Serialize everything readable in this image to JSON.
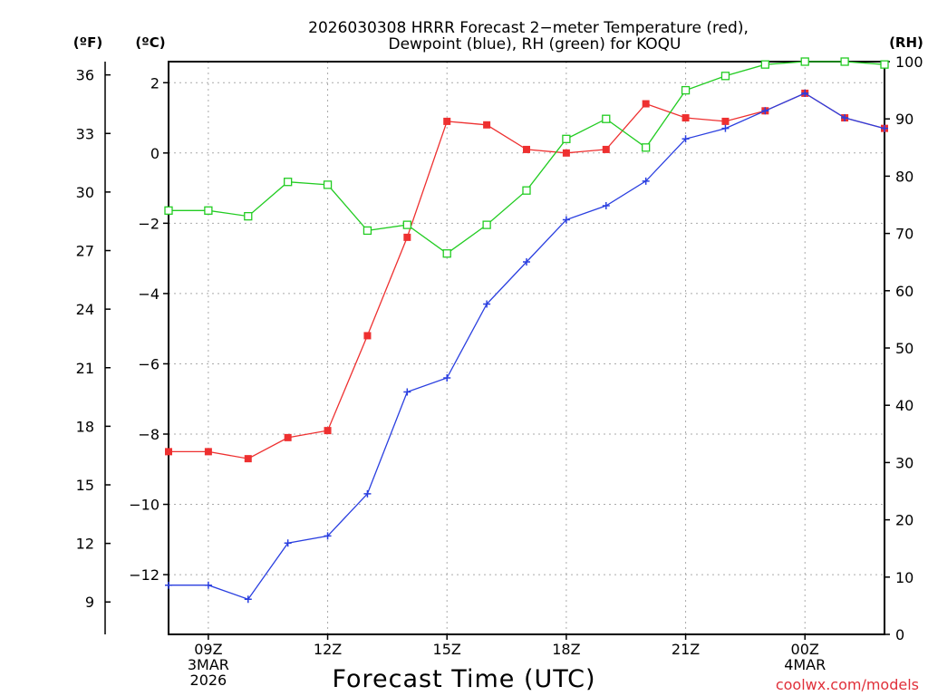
{
  "colors": {
    "temperature": "#ee3030",
    "dewpoint": "#2a3fe0",
    "rh": "#22cc22",
    "grid": "#aaaaaa",
    "credit": "#e0303a"
  },
  "chart_data": {
    "type": "line",
    "title": "2026030308 HRRR Forecast 2-meter Temperature (red), Dewpoint (blue), RH (green) for KOQU",
    "title_lines": [
      "2026030308 HRRR Forecast 2−meter Temperature (red),",
      "Dewpoint (blue), RH (green) for KOQU"
    ],
    "xlabel": "Forecast Time (UTC)",
    "credit": "coolwx.com/models",
    "x": [
      8,
      9,
      10,
      11,
      12,
      13,
      14,
      15,
      16,
      17,
      18,
      19,
      20,
      21,
      22,
      23,
      24,
      25,
      26
    ],
    "xlim": [
      8,
      26
    ],
    "x_ticks": [
      {
        "pos": 9,
        "lines": [
          "09Z",
          "3MAR",
          "2026"
        ]
      },
      {
        "pos": 12,
        "lines": [
          "12Z"
        ]
      },
      {
        "pos": 15,
        "lines": [
          "15Z"
        ]
      },
      {
        "pos": 18,
        "lines": [
          "18Z"
        ]
      },
      {
        "pos": 21,
        "lines": [
          "21Z"
        ]
      },
      {
        "pos": 24,
        "lines": [
          "00Z",
          "4MAR"
        ]
      }
    ],
    "y_celsius": {
      "label": "(ºC)",
      "ylim": [
        -13.7,
        2.6
      ],
      "ticks": [
        2,
        0,
        -2,
        -4,
        -6,
        -8,
        -10,
        -12
      ],
      "tick_labels": [
        "2",
        "0",
        "−2",
        "−4",
        "−6",
        "−8",
        "−10",
        "−12"
      ]
    },
    "y_fahrenheit": {
      "label": "(ºF)",
      "ticks": [
        36,
        33,
        30,
        27,
        24,
        21,
        18,
        15,
        12,
        9
      ],
      "tick_labels": [
        "36",
        "33",
        "30",
        "27",
        "24",
        "21",
        "18",
        "15",
        "12",
        "9"
      ]
    },
    "y_rh": {
      "label": "(RH)",
      "ylim": [
        0,
        100
      ],
      "ticks": [
        100,
        90,
        80,
        70,
        60,
        50,
        40,
        30,
        20,
        10,
        0
      ],
      "tick_labels": [
        "100",
        "90",
        "80",
        "70",
        "60",
        "50",
        "40",
        "30",
        "20",
        "10",
        "0"
      ]
    },
    "series": [
      {
        "name": "Temperature",
        "axis": "celsius",
        "marker": "filled-square",
        "values": [
          -8.5,
          -8.5,
          -8.7,
          -8.1,
          -7.9,
          -5.2,
          -2.4,
          0.9,
          0.8,
          0.1,
          0.0,
          0.1,
          1.4,
          1.0,
          0.9,
          1.2,
          1.7,
          1.0,
          0.7
        ]
      },
      {
        "name": "Dewpoint",
        "axis": "celsius",
        "marker": "plus",
        "values": [
          -12.3,
          -12.3,
          -12.7,
          -11.1,
          -10.9,
          -9.7,
          -6.8,
          -6.4,
          -4.3,
          -3.1,
          -1.9,
          -1.5,
          -0.8,
          0.4,
          0.7,
          1.2,
          1.7,
          1.0,
          0.7
        ]
      },
      {
        "name": "RH",
        "axis": "rh",
        "marker": "open-square",
        "values": [
          74,
          74,
          73,
          79,
          78.5,
          70.5,
          71.5,
          66.5,
          71.5,
          77.5,
          86.5,
          90,
          85,
          95,
          97.5,
          99.5,
          100,
          100,
          99.5
        ]
      }
    ]
  }
}
